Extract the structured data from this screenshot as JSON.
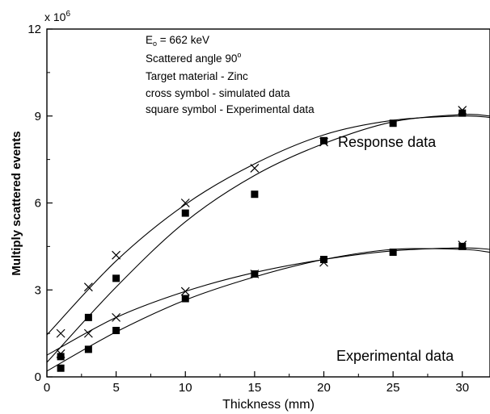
{
  "chart_data": {
    "type": "scatter",
    "title": "",
    "xlabel": "Thickness (mm)",
    "ylabel": "Multiply scattered events",
    "y_multiplier_label": "x 10",
    "y_multiplier_exp": "6",
    "xlim": [
      0,
      32
    ],
    "ylim": [
      0,
      12
    ],
    "xticks": [
      0,
      5,
      10,
      15,
      20,
      25,
      30
    ],
    "yticks": [
      0,
      3,
      6,
      9,
      12
    ],
    "grid": false,
    "info_lines": [
      {
        "text": "E",
        "sub": "o",
        "rest": " = 662 keV"
      },
      {
        "text": "Scattered angle  90",
        "sup": "o"
      },
      {
        "text": "Target material - Zinc"
      },
      {
        "text": "cross symbol   - simulated data"
      },
      {
        "text": "square symbol - Experimental data"
      }
    ],
    "labels": {
      "response": "Response data",
      "experimental": "Experimental data"
    },
    "series": [
      {
        "group": "response",
        "marker": "cross",
        "x": [
          1,
          3,
          5,
          10,
          15,
          20,
          30
        ],
        "y": [
          1.5,
          3.1,
          4.2,
          6.0,
          7.2,
          8.1,
          9.2
        ]
      },
      {
        "group": "response",
        "marker": "square",
        "x": [
          1,
          3,
          5,
          10,
          15,
          20,
          25,
          30
        ],
        "y": [
          0.7,
          2.05,
          3.4,
          5.65,
          6.3,
          8.15,
          8.75,
          9.1
        ]
      },
      {
        "group": "experimental",
        "marker": "cross",
        "x": [
          1,
          3,
          5,
          10,
          15,
          20,
          30
        ],
        "y": [
          0.8,
          1.5,
          2.05,
          2.95,
          3.55,
          3.95,
          4.55
        ]
      },
      {
        "group": "experimental",
        "marker": "square",
        "x": [
          1,
          3,
          5,
          10,
          15,
          20,
          25,
          30
        ],
        "y": [
          0.3,
          0.95,
          1.6,
          2.7,
          3.55,
          4.05,
          4.3,
          4.5
        ]
      }
    ],
    "fits": [
      {
        "group": "response",
        "marker": "cross",
        "x": [
          0,
          5,
          10,
          15,
          20,
          25,
          30,
          32
        ],
        "y": [
          1.45,
          4.0,
          5.95,
          7.35,
          8.35,
          8.85,
          9.0,
          8.95
        ]
      },
      {
        "group": "response",
        "marker": "square",
        "x": [
          0,
          5,
          10,
          15,
          20,
          25,
          30,
          32
        ],
        "y": [
          0.5,
          3.1,
          5.35,
          6.95,
          8.05,
          8.8,
          9.05,
          9.0
        ]
      },
      {
        "group": "experimental",
        "marker": "cross",
        "x": [
          0,
          5,
          10,
          15,
          20,
          25,
          30,
          32
        ],
        "y": [
          0.75,
          2.05,
          2.95,
          3.6,
          4.05,
          4.35,
          4.45,
          4.4
        ]
      },
      {
        "group": "experimental",
        "marker": "square",
        "x": [
          0,
          5,
          10,
          15,
          20,
          25,
          30,
          32
        ],
        "y": [
          0.2,
          1.55,
          2.65,
          3.45,
          4.05,
          4.4,
          4.4,
          4.3
        ]
      }
    ]
  }
}
